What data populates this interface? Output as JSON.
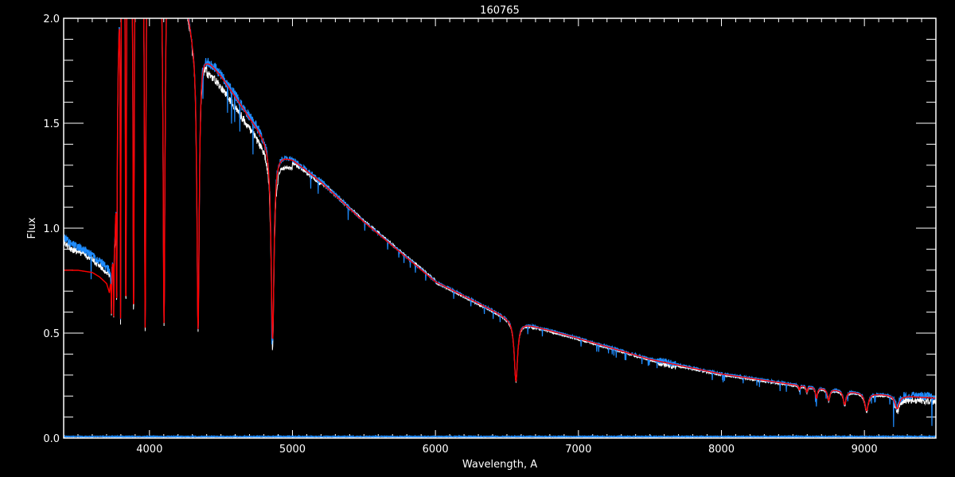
{
  "chart_data": {
    "type": "line",
    "title": "160765",
    "xlabel": "Wavelength, A",
    "ylabel": "Flux",
    "xlim": [
      3400,
      9500
    ],
    "ylim": [
      0.0,
      2.0
    ],
    "x_ticks": [
      4000,
      5000,
      6000,
      7000,
      8000,
      9000
    ],
    "x_tick_labels": [
      "4000",
      "5000",
      "6000",
      "7000",
      "8000",
      "9000"
    ],
    "x_minor_step": 100,
    "y_ticks": [
      0.0,
      0.5,
      1.0,
      1.5,
      2.0
    ],
    "y_tick_labels": [
      "0.0",
      "0.5",
      "1.0",
      "1.5",
      "2.0"
    ],
    "y_minor_step": 0.1,
    "grid": false,
    "legend": "none",
    "colors": {
      "background": "#000000",
      "axes": "#ffffff",
      "white_series": "#ffffff",
      "blue_series": "#1e8cff",
      "red_series": "#ff0000"
    },
    "continuum": {
      "x": [
        3400,
        3500,
        3600,
        3650,
        3700,
        3720,
        3760,
        3800,
        4000,
        4250,
        4300,
        4400,
        4500,
        4600,
        4700,
        4800,
        4900,
        5000,
        5200,
        5500,
        6000,
        6500,
        6600,
        7000,
        7500,
        8000,
        8500,
        9000,
        9500
      ],
      "y": [
        0.8,
        0.8,
        0.79,
        0.77,
        0.74,
        0.7,
        1.0,
        2.6,
        2.6,
        2.1,
        1.95,
        1.82,
        1.73,
        1.63,
        1.53,
        1.44,
        1.36,
        1.33,
        1.22,
        1.03,
        0.745,
        0.575,
        0.55,
        0.475,
        0.375,
        0.305,
        0.255,
        0.215,
        0.19
      ]
    },
    "blue_region_continuum": {
      "x": [
        3400,
        3450,
        3550,
        3650,
        3700,
        3730,
        3760
      ],
      "y": [
        0.95,
        0.92,
        0.89,
        0.84,
        0.81,
        0.8,
        1.0
      ]
    },
    "absorption_lines": [
      {
        "center": 3734,
        "min_flux": 0.6,
        "width": 2
      },
      {
        "center": 3750,
        "min_flux": 0.59,
        "width": 2
      },
      {
        "center": 3771,
        "min_flux": 0.58,
        "width": 2.5
      },
      {
        "center": 3798,
        "min_flux": 0.58,
        "width": 3
      },
      {
        "center": 3835,
        "min_flux": 0.57,
        "width": 4
      },
      {
        "center": 3889,
        "min_flux": 0.57,
        "width": 5
      },
      {
        "center": 3970,
        "min_flux": 0.53,
        "width": 6
      },
      {
        "center": 4102,
        "min_flux": 0.55,
        "width": 8
      },
      {
        "center": 4340,
        "min_flux": 0.52,
        "width": 10
      },
      {
        "center": 4861,
        "min_flux": 0.47,
        "width": 12
      },
      {
        "center": 6563,
        "min_flux": 0.27,
        "width": 14
      },
      {
        "center": 8545,
        "min_flux": 0.23,
        "width": 5
      },
      {
        "center": 8598,
        "min_flux": 0.22,
        "width": 6
      },
      {
        "center": 8665,
        "min_flux": 0.19,
        "width": 8
      },
      {
        "center": 8750,
        "min_flux": 0.18,
        "width": 10
      },
      {
        "center": 8862,
        "min_flux": 0.16,
        "width": 12
      },
      {
        "center": 9015,
        "min_flux": 0.13,
        "width": 15
      },
      {
        "center": 9229,
        "min_flux": 0.14,
        "width": 18
      }
    ],
    "series": [
      {
        "color": "#ffffff"
      },
      {
        "color": "#1e8cff"
      },
      {
        "color": "#ff0000"
      }
    ],
    "error_level": 0.005
  }
}
